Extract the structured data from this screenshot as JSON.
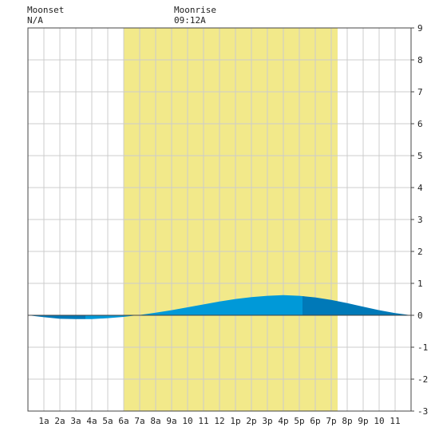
{
  "header": {
    "moonset_label": "Moonset",
    "moonset_value": "N/A",
    "moonrise_label": "Moonrise",
    "moonrise_value": "09:12A"
  },
  "chart_data": {
    "type": "area",
    "title": "",
    "xlabel": "",
    "ylabel": "",
    "x_range_hours": [
      0,
      24
    ],
    "ylim": [
      -3,
      9
    ],
    "grid": true,
    "x_tick_labels": [
      "1a",
      "2a",
      "3a",
      "4a",
      "5a",
      "6a",
      "7a",
      "8a",
      "9a",
      "10",
      "11",
      "12",
      "1p",
      "2p",
      "3p",
      "4p",
      "5p",
      "6p",
      "7p",
      "8p",
      "9p",
      "10",
      "11"
    ],
    "y_ticks": [
      -3,
      -2,
      -1,
      0,
      1,
      2,
      3,
      4,
      5,
      6,
      7,
      8,
      9
    ],
    "daylight_hours": [
      6.0,
      19.4
    ],
    "colors": {
      "daylight": "#f2e98a",
      "tide_rising": "#0099d8",
      "tide_falling": "#0079b8",
      "grid": "#cccccc",
      "axis": "#444444"
    },
    "series": [
      {
        "x": [
          0,
          1,
          2,
          3,
          4,
          5,
          6,
          7,
          8,
          9,
          10,
          11,
          12,
          13,
          14,
          15,
          16,
          17,
          18,
          19,
          20,
          21,
          22,
          23,
          24
        ],
        "values": [
          0.0,
          -0.06,
          -0.11,
          -0.12,
          -0.12,
          -0.09,
          -0.05,
          0.01,
          0.08,
          0.16,
          0.25,
          0.34,
          0.43,
          0.51,
          0.57,
          0.61,
          0.63,
          0.61,
          0.56,
          0.48,
          0.38,
          0.27,
          0.16,
          0.07,
          0.0
        ]
      }
    ],
    "tide_turns": [
      3.6,
      17.2
    ]
  }
}
